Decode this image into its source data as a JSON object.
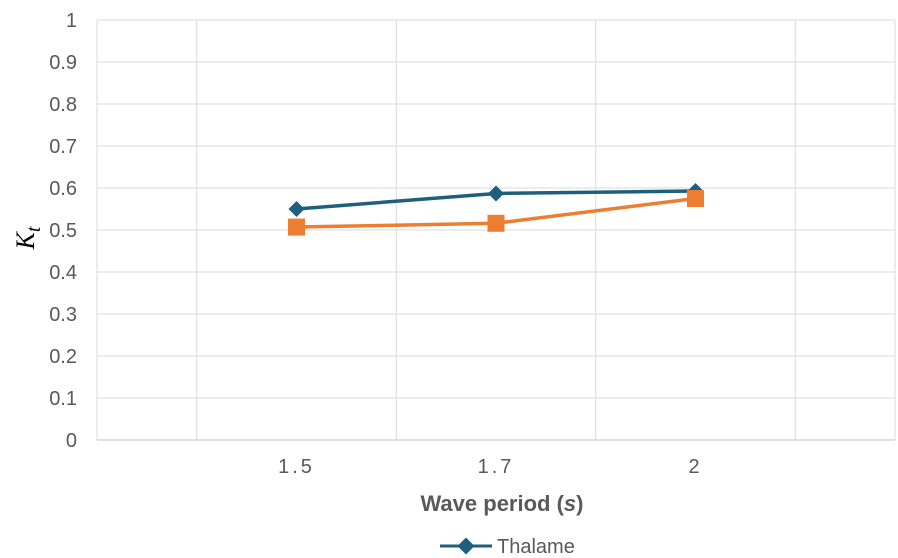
{
  "chart_data": {
    "type": "line",
    "categories": [
      "1.5",
      "1.7",
      "2"
    ],
    "series": [
      {
        "name": "Thalame",
        "values": [
          0.55,
          0.587,
          0.593
        ],
        "color": "#1f5f7e",
        "marker": "diamond"
      },
      {
        "values": [
          0.507,
          0.516,
          0.575
        ],
        "color": "#ed7d31",
        "marker": "square"
      }
    ],
    "ylim": [
      0,
      1
    ],
    "yticks": [
      "0",
      "0.1",
      "0.2",
      "0.3",
      "0.4",
      "0.5",
      "0.6",
      "0.7",
      "0.8",
      "0.9",
      "1"
    ],
    "xtick_labels": [
      "1.5",
      "1.7",
      "2"
    ],
    "xlabel_main": "Wave period (",
    "xlabel_unit": "s",
    "xlabel_close": ")",
    "ylabel_main": "K",
    "ylabel_sub": "t",
    "grid": true,
    "legend_position": "bottom"
  }
}
